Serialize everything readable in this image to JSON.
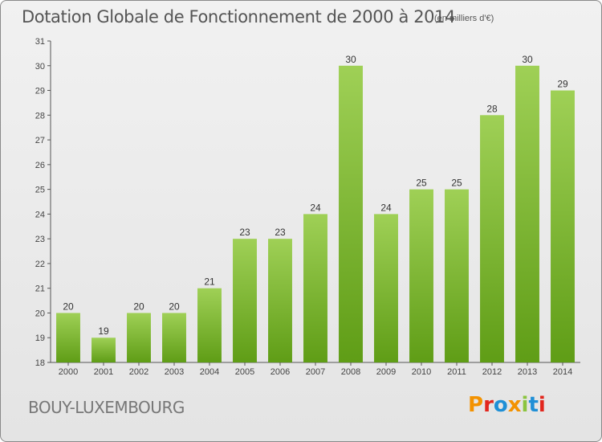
{
  "header": {
    "title": "Dotation Globale de Fonctionnement de 2000 à 2014",
    "unit": "(en milliers d'€)"
  },
  "footer": {
    "location": "BOUY-LUXEMBOURG",
    "logo_text": "Proxiti",
    "logo_colors": [
      "#f39200",
      "#e2261d",
      "#1f8fd6",
      "#f39200",
      "#8bc43f",
      "#1f8fd6",
      "#e2261d"
    ]
  },
  "chart_data": {
    "type": "bar",
    "categories": [
      "2000",
      "2001",
      "2002",
      "2003",
      "2004",
      "2005",
      "2006",
      "2007",
      "2008",
      "2009",
      "2010",
      "2011",
      "2012",
      "2013",
      "2014"
    ],
    "values": [
      20,
      19,
      20,
      20,
      21,
      23,
      23,
      24,
      30,
      24,
      25,
      25,
      28,
      30,
      29
    ],
    "data_labels": [
      "20",
      "19",
      "20",
      "20",
      "21",
      "23",
      "23",
      "24",
      "30",
      "24",
      "25",
      "25",
      "28",
      "30",
      "29"
    ],
    "yticks": [
      "18",
      "19",
      "20",
      "21",
      "22",
      "23",
      "24",
      "25",
      "26",
      "27",
      "28",
      "29",
      "30",
      "31"
    ],
    "ylim": [
      18,
      31
    ],
    "grid": false,
    "bar_color_top": "#9fd056",
    "bar_color_bottom": "#5f9d16"
  }
}
